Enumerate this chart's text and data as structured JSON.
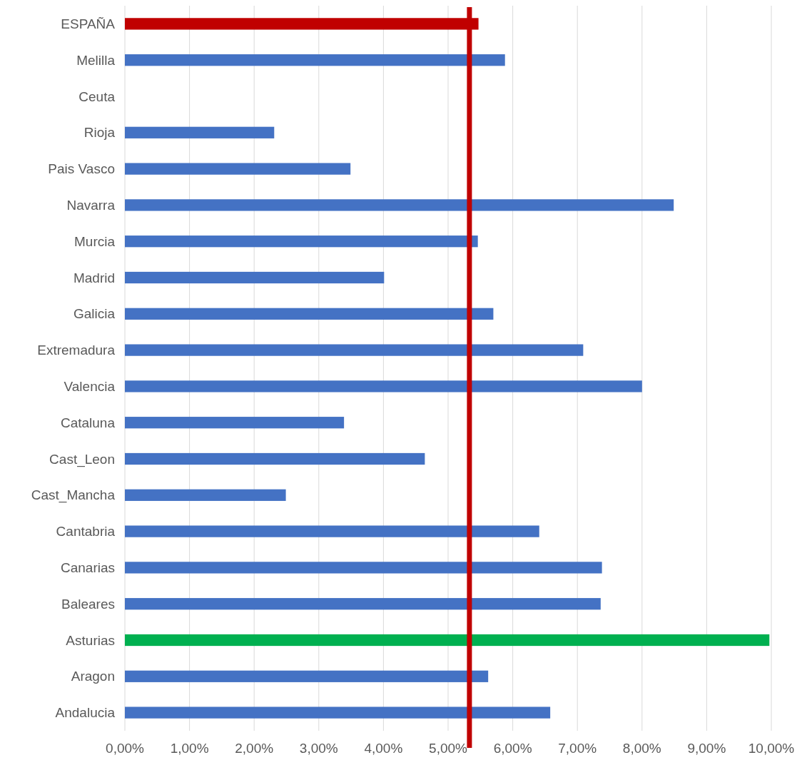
{
  "chart_data": {
    "type": "bar",
    "orientation": "horizontal",
    "categories": [
      "ESPAÑA",
      "Melilla",
      "Ceuta",
      "Rioja",
      "Pais Vasco",
      "Navarra",
      "Murcia",
      "Madrid",
      "Galicia",
      "Extremadura",
      "Valencia",
      "Cataluna",
      "Cast_Leon",
      "Cast_Mancha",
      "Cantabria",
      "Canarias",
      "Baleares",
      "Asturias",
      "Aragon",
      "Andalucia"
    ],
    "values": [
      5.47,
      5.88,
      null,
      2.31,
      3.49,
      8.49,
      5.46,
      4.01,
      5.7,
      7.09,
      8.0,
      3.39,
      4.64,
      2.49,
      6.41,
      7.38,
      7.36,
      9.97,
      5.62,
      6.58
    ],
    "colors": [
      "#c00000",
      "#4472c4",
      null,
      "#4472c4",
      "#4472c4",
      "#4472c4",
      "#4472c4",
      "#4472c4",
      "#4472c4",
      "#4472c4",
      "#4472c4",
      "#4472c4",
      "#4472c4",
      "#4472c4",
      "#4472c4",
      "#4472c4",
      "#4472c4",
      "#00b050",
      "#4472c4",
      "#4472c4"
    ],
    "xlim": [
      0,
      10
    ],
    "xticks": [
      {
        "value": 0,
        "label": "0,00%"
      },
      {
        "value": 1,
        "label": "1,00%"
      },
      {
        "value": 2,
        "label": "2,00%"
      },
      {
        "value": 3,
        "label": "3,00%"
      },
      {
        "value": 4,
        "label": "4,00%"
      },
      {
        "value": 5,
        "label": "5,00%"
      },
      {
        "value": 6,
        "label": "6,00%"
      },
      {
        "value": 7,
        "label": "7,00%"
      },
      {
        "value": 8,
        "label": "8,00%"
      },
      {
        "value": 9,
        "label": "9,00%"
      },
      {
        "value": 10,
        "label": "10,00%"
      }
    ],
    "grid": "x",
    "ref_lines": [
      {
        "axis": "x",
        "value": 5.33,
        "color": "#c00000"
      }
    ]
  }
}
